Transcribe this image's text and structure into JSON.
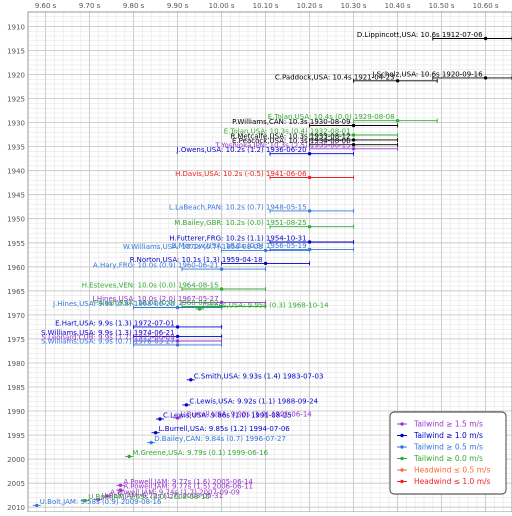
{
  "chart_data": {
    "type": "scatter",
    "x_ticks": [
      "9.60 s",
      "9.70 s",
      "9.80 s",
      "9.90 s",
      "10.00 s",
      "10.10 s",
      "10.20 s",
      "10.30 s",
      "10.40 s",
      "10.50 s",
      "10.60 s"
    ],
    "y_ticks": [
      "1910",
      "1915",
      "1920",
      "1925",
      "1930",
      "1935",
      "1940",
      "1945",
      "1950",
      "1955",
      "1960",
      "1965",
      "1970",
      "1975",
      "1980",
      "1985",
      "1990",
      "1995",
      "2000",
      "2005",
      "2010"
    ],
    "xlim": [
      9.56,
      10.66
    ],
    "ylim": [
      1907,
      2011
    ],
    "grid": true,
    "legend_position": "bottom-right",
    "colors": {
      "tw15": "#9933cc",
      "tw10": "#0000cc",
      "tw05": "#3377dd",
      "tw00": "#33aa33",
      "hw05": "#ff6633",
      "hw10": "#ee2222",
      "black": "#000000"
    },
    "legend": [
      {
        "label": "Tailwind ≥ 1.5 m/s",
        "color_key": "tw15"
      },
      {
        "label": "Tailwind ≥ 1.0 m/s",
        "color_key": "tw10"
      },
      {
        "label": "Tailwind ≥ 0.5 m/s",
        "color_key": "tw05"
      },
      {
        "label": "Tailwind ≥ 0.0 m/s",
        "color_key": "tw00"
      },
      {
        "label": "Headwind ≤ 0.5 m/s",
        "color_key": "hw05"
      },
      {
        "label": "Headwind ≤ 1.0 m/s",
        "color_key": "hw10"
      }
    ],
    "records": [
      {
        "label": "D.Lippincott,USA: 10.6s 1912-07-06",
        "time": 10.6,
        "date": "1912-07-06",
        "color_key": "black",
        "label_side": "left",
        "range": [
          10.48,
          10.66
        ]
      },
      {
        "label": "J.Scholz,USA: 10.6s 1920-09-16",
        "time": 10.6,
        "date": "1920-09-16",
        "color_key": "black",
        "label_side": "left",
        "range": [
          10.48,
          10.66
        ]
      },
      {
        "label": "C.Paddock,USA: 10.4s 1921-04-23",
        "time": 10.4,
        "date": "1921-04-23",
        "color_key": "black",
        "label_side": "left",
        "range": [
          10.3,
          10.49
        ]
      },
      {
        "label": "E.Tolan,USA: 10.4s (0.0) 1929-08-08",
        "time": 10.4,
        "date": "1929-08-08",
        "color_key": "tw00",
        "label_side": "left",
        "range": [
          10.3,
          10.49
        ]
      },
      {
        "label": "P.Williams,CAN: 10.3s 1930-08-09",
        "time": 10.3,
        "date": "1930-08-09",
        "color_key": "black",
        "label_side": "left",
        "range": [
          10.2,
          10.4
        ]
      },
      {
        "label": "E.Tolan,USA: 10.3s (0.4) 1932-08-01",
        "time": 10.3,
        "date": "1932-08-01",
        "color_key": "tw00",
        "label_side": "left",
        "range": [
          10.2,
          10.4
        ]
      },
      {
        "label": "R.Metcalfe,USA: 10.3s 1933-08-12",
        "time": 10.3,
        "date": "1933-08-12",
        "color_key": "black",
        "label_side": "left",
        "range": [
          10.2,
          10.4
        ]
      },
      {
        "label": "E.Peacock,USA: 10.3s 1934-08-06",
        "time": 10.3,
        "date": "1934-08-06",
        "color_key": "black",
        "label_side": "left",
        "range": [
          10.2,
          10.4
        ]
      },
      {
        "label": "T.Yoshioka,JPN: 10.3s (2.5) 1935-06-15",
        "time": 10.3,
        "date": "1935-06-15",
        "color_key": "tw15",
        "label_side": "left",
        "range": [
          10.2,
          10.4
        ]
      },
      {
        "label": "J.Owens,USA: 10.2s (1.2) 1936-06-20",
        "time": 10.2,
        "date": "1936-06-20",
        "color_key": "tw10",
        "label_side": "left",
        "range": [
          10.11,
          10.3
        ]
      },
      {
        "label": "H.Davis,USA: 10.2s (-0.5) 1941-06-06",
        "time": 10.2,
        "date": "1941-06-06",
        "color_key": "hw10",
        "label_side": "left",
        "range": [
          10.11,
          10.3
        ]
      },
      {
        "label": "L.LaBeach,PAN: 10.2s (0.7) 1948-05-15",
        "time": 10.2,
        "date": "1948-05-15",
        "color_key": "tw05",
        "label_side": "left",
        "range": [
          10.11,
          10.3
        ]
      },
      {
        "label": "M.Bailey,GBR: 10.2s (0.0) 1951-08-25",
        "time": 10.2,
        "date": "1951-08-25",
        "color_key": "tw00",
        "label_side": "left",
        "range": [
          10.11,
          10.3
        ]
      },
      {
        "label": "H.Futterer,FRG: 10.2s (1.1) 1954-10-31",
        "time": 10.2,
        "date": "1954-10-31",
        "color_key": "tw10",
        "label_side": "left",
        "range": [
          10.11,
          10.3
        ]
      },
      {
        "label": "B.Morrow,USA: 10.2s (0.9) 1956-05-19",
        "time": 10.2,
        "date": "1956-05-19",
        "color_key": "tw05",
        "label_side": "left",
        "range": [
          10.11,
          10.3
        ]
      },
      {
        "label": "W.Williams,USA: 10.1s (0.7) 1956-08-03",
        "time": 10.1,
        "date": "1956-08-03",
        "color_key": "tw05",
        "label_side": "left",
        "range": [
          10.0,
          10.2
        ]
      },
      {
        "label": "R.Norton,USA: 10.1s (1.3) 1959-04-18",
        "time": 10.1,
        "date": "1959-04-18",
        "color_key": "tw10",
        "label_side": "left",
        "range": [
          10.0,
          10.2
        ]
      },
      {
        "label": "A.Hary,FRG: 10.0s (0.9) 1960-06-21",
        "time": 10.0,
        "date": "1960-06-21",
        "color_key": "tw05",
        "label_side": "left",
        "range": [
          9.91,
          10.1
        ]
      },
      {
        "label": "H.Esteves,VEN: 10.0s (0.0) 1964-08-15",
        "time": 10.0,
        "date": "1964-08-15",
        "color_key": "tw00",
        "label_side": "left",
        "range": [
          9.91,
          10.1
        ]
      },
      {
        "label": "J.Hines,USA: 10.0s (2.0) 1967-05-27",
        "time": 10.0,
        "date": "1967-05-27",
        "color_key": "tw15",
        "label_side": "left",
        "range": [
          9.91,
          10.1
        ]
      },
      {
        "label": "P.Nash,RSA: 10.0s (0.0) 1968-04-02",
        "time": 10.0,
        "date": "1968-04-02",
        "color_key": "tw00",
        "label_side": "left",
        "range": [
          9.91,
          10.1
        ]
      },
      {
        "label": "J.Hines,USA: 9.9s (0.8) 1968-06-20",
        "time": 9.9,
        "date": "1968-06-20",
        "color_key": "tw05",
        "label_side": "left",
        "range": [
          9.8,
          10.0
        ]
      },
      {
        "label": "J.Hines,USA: 9.95s (0.3) 1968-10-14",
        "time": 9.95,
        "date": "1968-10-14",
        "color_key": "tw00",
        "label_side": "right",
        "range": [
          9.95,
          9.95
        ]
      },
      {
        "label": "E.Hart,USA: 9.9s (1.3) 1972-07-01",
        "time": 9.9,
        "date": "1972-07-01",
        "color_key": "tw10",
        "label_side": "left",
        "range": [
          9.8,
          10.0
        ]
      },
      {
        "label": "S.Williams,USA: 9.9s (1.3) 1974-06-21",
        "time": 9.9,
        "date": "1974-06-21",
        "color_key": "tw10",
        "label_side": "left",
        "range": [
          9.8,
          10.0
        ]
      },
      {
        "label": "S.Leonard,CUB: 9.9s (1.7) 1975-06-09",
        "time": 9.9,
        "date": "1975-06-09",
        "color_key": "tw15",
        "label_side": "left",
        "range": [
          9.8,
          10.0
        ]
      },
      {
        "label": "S.Williams,USA: 9.9s (0.7) 1976-03-27",
        "time": 9.9,
        "date": "1976-03-27",
        "color_key": "tw05",
        "label_side": "left",
        "range": [
          9.8,
          10.0
        ]
      },
      {
        "label": "C.Smith,USA: 9.93s (1.4) 1983-07-03",
        "time": 9.93,
        "date": "1983-07-03",
        "color_key": "tw10",
        "label_side": "right",
        "range": [
          9.93,
          9.93
        ]
      },
      {
        "label": "C.Lewis,USA: 9.92s (1.1) 1988-09-24",
        "time": 9.92,
        "date": "1988-09-24",
        "color_key": "tw10",
        "label_side": "right",
        "range": [
          9.92,
          9.92
        ]
      },
      {
        "label": "L.Burrell,USA: 9.90s (1.9) 1991-06-14",
        "time": 9.9,
        "date": "1991-06-14",
        "color_key": "tw15",
        "label_side": "right",
        "range": [
          9.9,
          9.9
        ]
      },
      {
        "label": "C.Lewis,USA: 9.86s (1.0) 1991-08-25",
        "time": 9.86,
        "date": "1991-08-25",
        "color_key": "tw10",
        "label_side": "right",
        "range": [
          9.86,
          9.86
        ]
      },
      {
        "label": "L.Burrell,USA: 9.85s (1.2) 1994-07-06",
        "time": 9.85,
        "date": "1994-07-06",
        "color_key": "tw10",
        "label_side": "right",
        "range": [
          9.85,
          9.85
        ]
      },
      {
        "label": "D.Bailey,CAN: 9.84s (0.7) 1996-07-27",
        "time": 9.84,
        "date": "1996-07-27",
        "color_key": "tw05",
        "label_side": "right",
        "range": [
          9.84,
          9.84
        ]
      },
      {
        "label": "M.Greene,USA: 9.79s (0.1) 1999-06-16",
        "time": 9.79,
        "date": "1999-06-16",
        "color_key": "tw00",
        "label_side": "right",
        "range": [
          9.79,
          9.79
        ]
      },
      {
        "label": "A.Powell,JAM: 9.77s (1.6) 2005-06-14",
        "time": 9.77,
        "date": "2005-06-14",
        "color_key": "tw15",
        "label_side": "right",
        "range": [
          9.77,
          9.77
        ]
      },
      {
        "label": "A.Powell,JAM: 9.77s (1.5) 2006-06-11",
        "time": 9.77,
        "date": "2006-06-11",
        "color_key": "tw15",
        "label_side": "right",
        "range": [
          9.77,
          9.77
        ]
      },
      {
        "label": "A.Powell,JAM: 9.74s (1.7) 2007-09-09",
        "time": 9.74,
        "date": "2007-09-09",
        "color_key": "tw15",
        "label_side": "right",
        "range": [
          9.74,
          9.74
        ]
      },
      {
        "label": "U.Bolt,JAM: 9.72s (1.7) 2008-05-31",
        "time": 9.72,
        "date": "2008-05-31",
        "color_key": "tw15",
        "label_side": "right",
        "range": [
          9.72,
          9.72
        ]
      },
      {
        "label": "U.Bolt,JAM: 9.69s (0.0) 2008-08-16",
        "time": 9.69,
        "date": "2008-08-16",
        "color_key": "tw00",
        "label_side": "right",
        "range": [
          9.69,
          9.69
        ]
      },
      {
        "label": "U.Bolt,JAM: 9.58s (0.9) 2009-08-16",
        "time": 9.58,
        "date": "2009-08-16",
        "color_key": "tw05",
        "label_side": "right",
        "range": [
          9.58,
          9.58
        ]
      }
    ]
  }
}
